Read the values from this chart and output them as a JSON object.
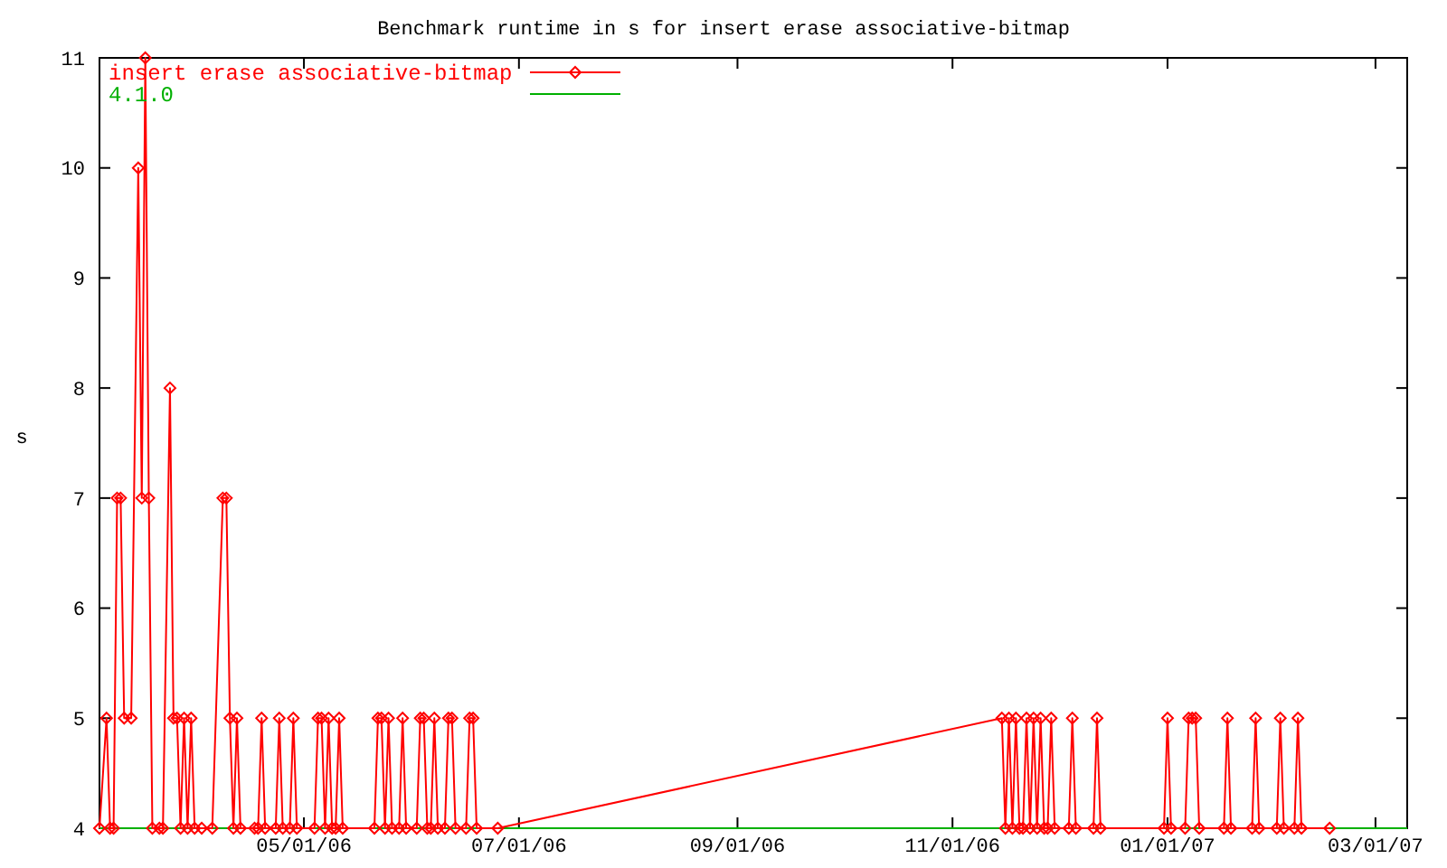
{
  "chart_data": {
    "type": "line",
    "title": "Benchmark runtime in s for insert erase associative-bitmap",
    "ylabel": "s",
    "xlim": [
      "2006-03-04",
      "2007-03-10"
    ],
    "xticks": [
      {
        "value": "2006-05-01",
        "label": "05/01/06"
      },
      {
        "value": "2006-07-01",
        "label": "07/01/06"
      },
      {
        "value": "2006-09-01",
        "label": "09/01/06"
      },
      {
        "value": "2006-11-01",
        "label": "11/01/06"
      },
      {
        "value": "2007-01-01",
        "label": "01/01/07"
      },
      {
        "value": "2007-03-01",
        "label": "03/01/07"
      }
    ],
    "ylim": [
      4,
      11
    ],
    "yticks": [
      4,
      5,
      6,
      7,
      8,
      9,
      10,
      11
    ],
    "grid": false,
    "legend": "top left",
    "series": [
      {
        "name": "insert erase associative-bitmap",
        "color": "#ff0000",
        "marker": "diamond",
        "x": [
          "2006-03-04",
          "2006-03-06",
          "2006-03-07",
          "2006-03-08",
          "2006-03-09",
          "2006-03-10",
          "2006-03-11",
          "2006-03-13",
          "2006-03-15",
          "2006-03-16",
          "2006-03-17",
          "2006-03-18",
          "2006-03-19",
          "2006-03-21",
          "2006-03-22",
          "2006-03-24",
          "2006-03-25",
          "2006-03-26",
          "2006-03-27",
          "2006-03-28",
          "2006-03-29",
          "2006-03-30",
          "2006-03-31",
          "2006-04-02",
          "2006-04-05",
          "2006-04-08",
          "2006-04-09",
          "2006-04-10",
          "2006-04-11",
          "2006-04-12",
          "2006-04-13",
          "2006-04-17",
          "2006-04-18",
          "2006-04-19",
          "2006-04-20",
          "2006-04-23",
          "2006-04-24",
          "2006-04-25",
          "2006-04-27",
          "2006-04-28",
          "2006-04-29",
          "2006-05-04",
          "2006-05-05",
          "2006-05-06",
          "2006-05-07",
          "2006-05-08",
          "2006-05-09",
          "2006-05-10",
          "2006-05-11",
          "2006-05-12",
          "2006-05-21",
          "2006-05-22",
          "2006-05-23",
          "2006-05-24",
          "2006-05-25",
          "2006-05-26",
          "2006-05-28",
          "2006-05-29",
          "2006-05-30",
          "2006-06-02",
          "2006-06-03",
          "2006-06-04",
          "2006-06-05",
          "2006-06-06",
          "2006-06-07",
          "2006-06-08",
          "2006-06-10",
          "2006-06-11",
          "2006-06-12",
          "2006-06-13",
          "2006-06-16",
          "2006-06-17",
          "2006-06-18",
          "2006-06-19",
          "2006-06-25",
          "2006-11-15",
          "2006-11-16",
          "2006-11-17",
          "2006-11-18",
          "2006-11-19",
          "2006-11-20",
          "2006-11-21",
          "2006-11-22",
          "2006-11-23",
          "2006-11-24",
          "2006-11-25",
          "2006-11-26",
          "2006-11-27",
          "2006-11-28",
          "2006-11-29",
          "2006-11-30",
          "2006-12-04",
          "2006-12-05",
          "2006-12-06",
          "2006-12-11",
          "2006-12-12",
          "2006-12-13",
          "2006-12-31",
          "2007-01-01",
          "2007-01-02",
          "2007-01-06",
          "2007-01-07",
          "2007-01-08",
          "2007-01-09",
          "2007-01-10",
          "2007-01-17",
          "2007-01-18",
          "2007-01-19",
          "2007-01-25",
          "2007-01-26",
          "2007-01-27",
          "2007-02-01",
          "2007-02-02",
          "2007-02-03",
          "2007-02-06",
          "2007-02-07",
          "2007-02-08",
          "2007-02-16"
        ],
        "values": [
          4,
          5,
          4,
          4,
          7,
          7,
          5,
          5,
          10,
          7,
          11,
          7,
          4,
          4,
          4,
          8,
          5,
          5,
          4,
          5,
          4,
          5,
          4,
          4,
          4,
          7,
          7,
          5,
          4,
          5,
          4,
          4,
          4,
          5,
          4,
          4,
          5,
          4,
          4,
          5,
          4,
          4,
          5,
          5,
          4,
          5,
          4,
          4,
          5,
          4,
          4,
          5,
          5,
          4,
          5,
          4,
          4,
          5,
          4,
          4,
          5,
          5,
          4,
          4,
          5,
          4,
          4,
          5,
          5,
          4,
          4,
          5,
          5,
          4,
          4,
          5,
          4,
          5,
          4,
          5,
          4,
          4,
          5,
          4,
          5,
          4,
          5,
          4,
          4,
          5,
          4,
          4,
          5,
          4,
          4,
          5,
          4,
          4,
          5,
          4,
          4,
          5,
          5,
          5,
          4,
          4,
          5,
          4,
          4,
          5,
          4,
          4,
          5,
          4,
          4,
          5,
          4,
          4
        ]
      },
      {
        "name": "4.1.0",
        "color": "#00b000",
        "marker": "none",
        "x": [
          "2006-03-04",
          "2007-03-10"
        ],
        "values": [
          4,
          4
        ]
      }
    ]
  }
}
